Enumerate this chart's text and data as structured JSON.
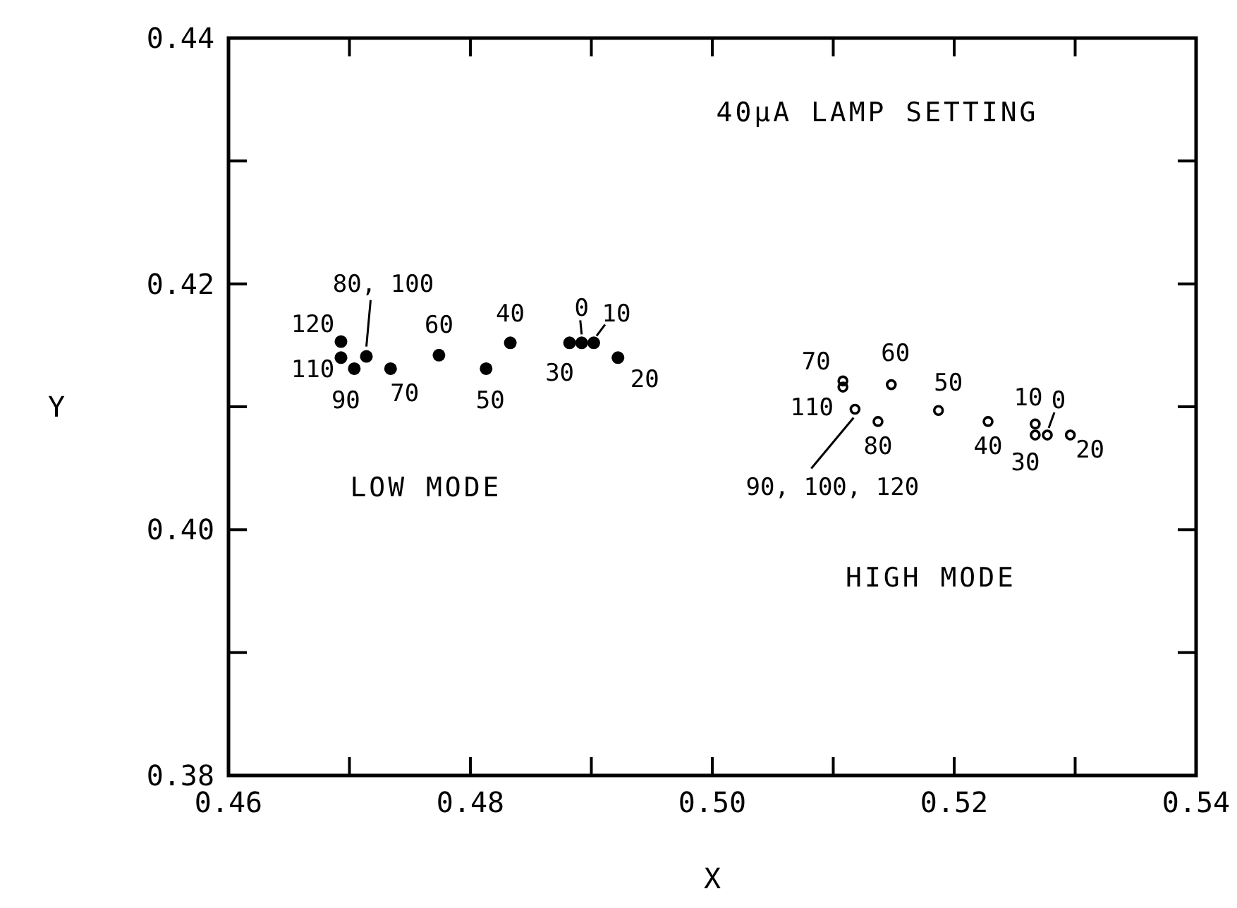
{
  "chart_data": {
    "type": "scatter",
    "title": "40μA LAMP SETTING",
    "xlabel": "X",
    "ylabel": "Y",
    "xlim": [
      0.46,
      0.54
    ],
    "ylim": [
      0.38,
      0.44
    ],
    "xticks": [
      0.46,
      {
        "value": 0.47,
        "label": null
      },
      0.48,
      {
        "value": 0.49,
        "label": null
      },
      {
        "value": 0.5,
        "label": "0.50"
      },
      {
        "value": 0.51,
        "label": null
      },
      0.52,
      {
        "value": 0.53,
        "label": null
      },
      0.54
    ],
    "yticks": [
      0.38,
      {
        "value": 0.39,
        "label": null
      },
      {
        "value": 0.4,
        "label": "0.40"
      },
      {
        "value": 0.41,
        "label": null
      },
      0.42,
      {
        "value": 0.43,
        "label": null
      },
      0.44
    ],
    "grid": false,
    "marker": "circle",
    "series": [
      {
        "color": "#000000",
        "x": [
          0.4693,
          0.4693,
          0.4704,
          0.4714,
          0.4734,
          0.4774,
          0.4813,
          0.4833,
          0.4882,
          0.4892,
          0.4902,
          0.4922
        ],
        "values": [
          0.4153,
          0.414,
          0.4131,
          0.4141,
          0.4131,
          0.4142,
          0.4131,
          0.4152,
          0.4152,
          0.4152,
          0.4152,
          0.414
        ]
      },
      {
        "color": "#000000",
        "x": [
          0.5108,
          0.5108,
          0.5118,
          0.5148,
          0.5137,
          0.5187,
          0.5228,
          0.5267,
          0.5267,
          0.5277,
          0.5296
        ],
        "values": [
          0.4121,
          0.4116,
          0.4098,
          0.4118,
          0.4088,
          0.4097,
          0.4088,
          0.4086,
          0.4077,
          0.4077,
          0.4077
        ]
      }
    ],
    "annotations": [
      "LOW MODE",
      "HIGH MODE",
      {
        "text": "120",
        "x": 0.4693,
        "y": 0.4153
      },
      {
        "text": "110",
        "x": 0.4693,
        "y": 0.414
      },
      {
        "text": "90",
        "x": 0.4704,
        "y": 0.4131
      },
      {
        "text": "80, 100",
        "x": 0.4714,
        "y": 0.4141
      },
      {
        "text": "70",
        "x": 0.4734,
        "y": 0.4131
      },
      {
        "text": "60",
        "x": 0.4774,
        "y": 0.4142
      },
      {
        "text": "50",
        "x": 0.4813,
        "y": 0.4131
      },
      {
        "text": "40",
        "x": 0.4833,
        "y": 0.4152
      },
      {
        "text": "30",
        "x": 0.4882,
        "y": 0.4152
      },
      {
        "text": "0",
        "x": 0.4892,
        "y": 0.4152
      },
      {
        "text": "10",
        "x": 0.4902,
        "y": 0.4152
      },
      {
        "text": "20",
        "x": 0.4922,
        "y": 0.414
      },
      {
        "text": "70",
        "x": 0.5108,
        "y": 0.4121
      },
      {
        "text": "110",
        "x": 0.5108,
        "y": 0.4116
      },
      {
        "text": "90, 100, 120",
        "x": 0.5118,
        "y": 0.4098
      },
      {
        "text": "60",
        "x": 0.5148,
        "y": 0.4118
      },
      {
        "text": "80",
        "x": 0.5137,
        "y": 0.4088
      },
      {
        "text": "50",
        "x": 0.5187,
        "y": 0.4097
      },
      {
        "text": "40",
        "x": 0.5228,
        "y": 0.4088
      },
      {
        "text": "10",
        "x": 0.5267,
        "y": 0.4086
      },
      {
        "text": "30",
        "x": 0.5267,
        "y": 0.4077
      },
      {
        "text": "0",
        "x": 0.5277,
        "y": 0.4077
      },
      {
        "text": "20",
        "x": 0.5296,
        "y": 0.4077
      }
    ]
  }
}
